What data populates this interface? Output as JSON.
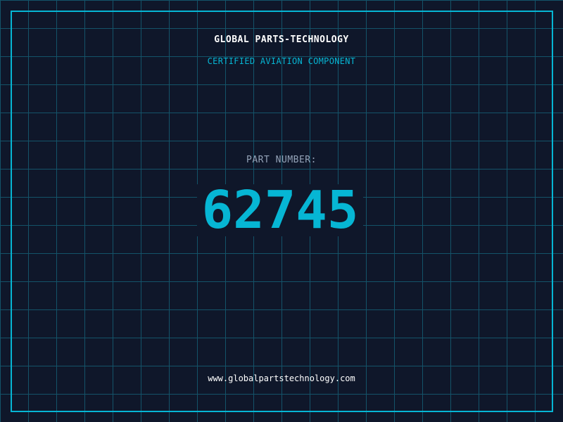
{
  "header": {
    "company": "GLOBAL PARTS-TECHNOLOGY",
    "subtitle": "CERTIFIED AVIATION COMPONENT"
  },
  "part": {
    "label": "PART NUMBER:",
    "number": "62745"
  },
  "footer": {
    "url": "www.globalpartstechnology.com"
  },
  "colors": {
    "background": "#0f172a",
    "accent": "#06b6d4",
    "grid": "#155e75",
    "label": "#94a3b8"
  }
}
